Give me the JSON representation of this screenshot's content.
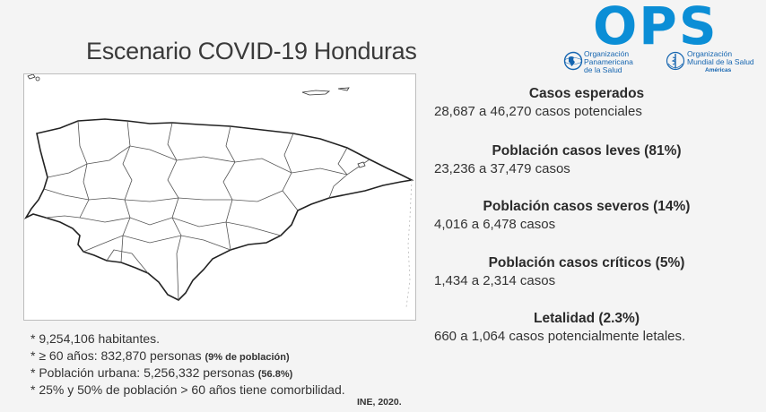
{
  "title": "Escenario COVID-19 Honduras",
  "logo": {
    "text": "OPS",
    "paho_lines": [
      "Organización",
      "Panamericana",
      "de la Salud"
    ],
    "who_lines": [
      "Organización",
      "Mundial de la Salud"
    ],
    "who_sub": "Américas",
    "brand_color": "#0b8ed6"
  },
  "stats": [
    {
      "heading": "Casos esperados",
      "value": "28,687 a 46,270 casos potenciales"
    },
    {
      "heading": "Población casos leves (81%)",
      "value": "23,236 a 37,479 casos"
    },
    {
      "heading": "Población casos severos (14%)",
      "value": "4,016 a 6,478 casos"
    },
    {
      "heading": "Población casos críticos (5%)",
      "value": "1,434 a 2,314 casos"
    },
    {
      "heading": "Letalidad (2.3%)",
      "value": "660 a 1,064 casos potencialmente letales."
    }
  ],
  "facts": [
    {
      "text": "* 9,254,106  habitantes.",
      "note": ""
    },
    {
      "text": "* ≥ 60 años: 832,870  personas ",
      "note": "(9% de población)"
    },
    {
      "text": "* Población urbana: 5,256,332  personas ",
      "note": "(56.8%)"
    },
    {
      "text": "* 25% y 50% de población > 60 años tiene comorbilidad.",
      "note": ""
    }
  ],
  "source": "INE, 2020."
}
